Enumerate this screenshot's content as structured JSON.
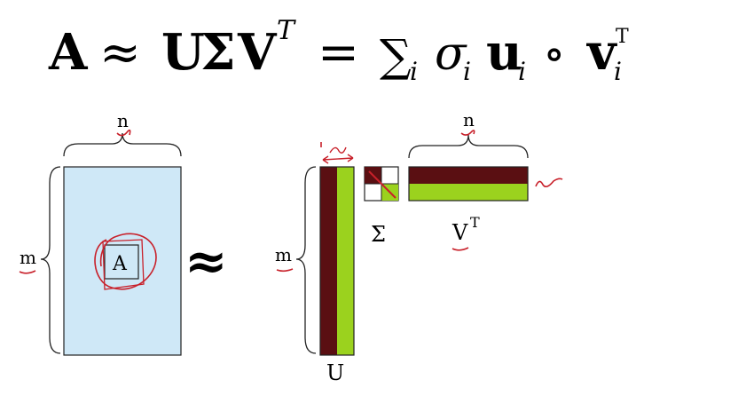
{
  "formula": {
    "A": "A",
    "approx": "≈",
    "U": "U",
    "Sigma": "Σ",
    "V": "V",
    "T": "T",
    "equals": "=",
    "sum": "∑",
    "sub_i": "i",
    "sigma": "σ",
    "u": "u",
    "circ": "∘",
    "v": "v"
  },
  "diagram": {
    "label_n_left": "n",
    "label_m_left": "m",
    "label_A": "A",
    "approx_symbol": "≈",
    "label_m_right": "m",
    "label_n_right": "n",
    "label_U": "U",
    "label_Sigma": "Σ",
    "label_VT": "V",
    "label_VT_sup": "T"
  },
  "colors": {
    "matrix_A_fill": "#cfe8f7",
    "dark_band": "#5a0f12",
    "green_band": "#9bd21e",
    "annotation_red": "#c8202a",
    "ink": "#111111"
  }
}
